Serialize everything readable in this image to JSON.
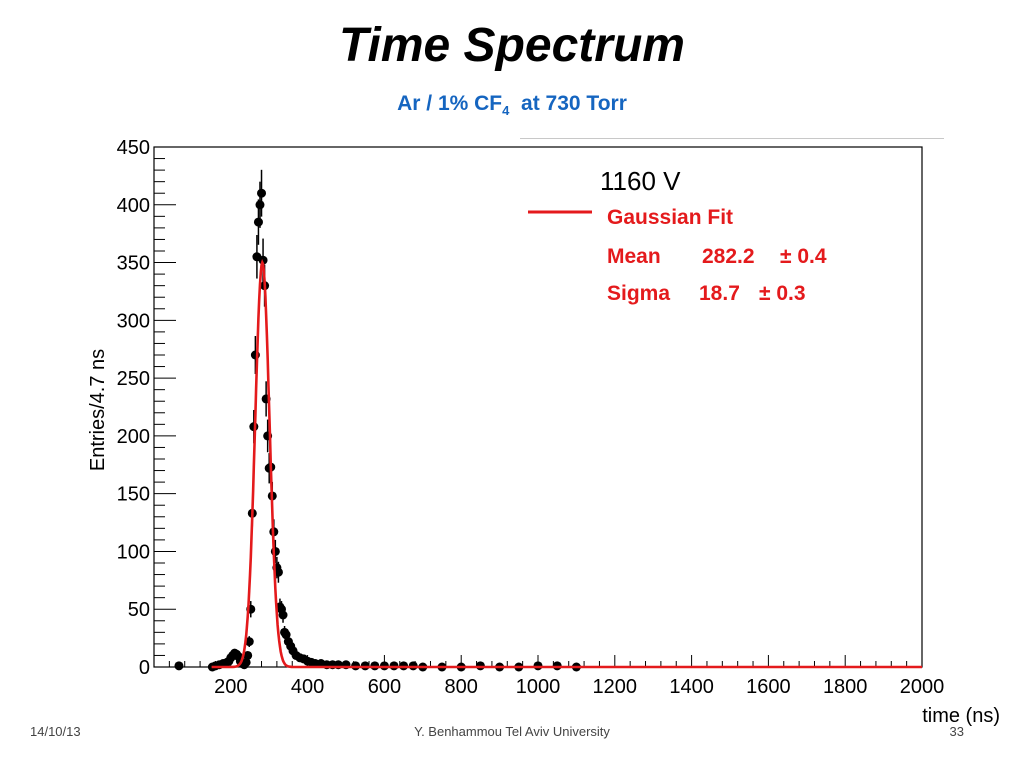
{
  "slide": {
    "title": "Time Spectrum",
    "subtitle_main": "Ar / 1% CF",
    "subtitle_sub": "4",
    "subtitle_tail": "  at 730 Torr"
  },
  "footer": {
    "date": "14/10/13",
    "center": "Y. Benhammou Tel Aviv University",
    "page": "33"
  },
  "colors": {
    "fit": "#e41a1c",
    "points": "#000000",
    "subtitle": "#1565c0"
  },
  "chart_data": {
    "type": "scatter",
    "xlabel": "time (ns)",
    "ylabel": "Entries/4.7 ns",
    "xlim": [
      0,
      2000
    ],
    "ylim": [
      0,
      450
    ],
    "xticks": [
      200,
      400,
      600,
      800,
      1000,
      1200,
      1400,
      1600,
      1800,
      2000
    ],
    "yticks": [
      0,
      50,
      100,
      150,
      200,
      250,
      300,
      350,
      400,
      450
    ],
    "legend_position": "top-right",
    "legend": {
      "voltage": "1160 V",
      "fit_label": "Gaussian Fit",
      "mean_label": "Mean",
      "mean_value": "282.2",
      "mean_err": "± 0.4",
      "sigma_label": "Sigma",
      "sigma_value": "18.7",
      "sigma_err": "± 0.3"
    },
    "series": [
      {
        "kind": "points",
        "x": [
          65,
          152,
          160,
          170,
          180,
          190,
          195,
          200,
          205,
          210,
          215,
          220,
          225,
          230,
          235,
          240,
          244,
          248,
          252,
          256,
          260,
          264,
          268,
          272,
          276,
          280,
          284,
          288,
          292,
          296,
          300,
          304,
          308,
          312,
          316,
          320,
          324,
          328,
          332,
          336,
          340,
          344,
          350,
          356,
          362,
          370,
          380,
          390,
          400,
          410,
          420,
          435,
          450,
          465,
          480,
          500,
          525,
          550,
          575,
          600,
          625,
          650,
          675,
          700,
          750,
          800,
          850,
          900,
          950,
          1000,
          1050,
          1100
        ],
        "y": [
          1,
          0,
          1,
          2,
          3,
          4,
          5,
          8,
          10,
          12,
          11,
          9,
          5,
          3,
          2,
          4,
          10,
          22,
          50,
          133,
          208,
          270,
          355,
          385,
          400,
          410,
          352,
          330,
          232,
          200,
          172,
          173,
          148,
          117,
          100,
          86,
          82,
          52,
          50,
          45,
          30,
          28,
          22,
          18,
          14,
          10,
          8,
          7,
          5,
          4,
          3,
          3,
          2,
          2,
          2,
          2,
          1,
          1,
          1,
          1,
          1,
          1,
          1,
          0,
          0,
          0,
          1,
          0,
          0,
          1,
          1,
          0
        ]
      },
      {
        "kind": "fit",
        "function": "gaussian",
        "mean": 282.2,
        "sigma": 18.7,
        "amplitude": 350
      }
    ]
  }
}
